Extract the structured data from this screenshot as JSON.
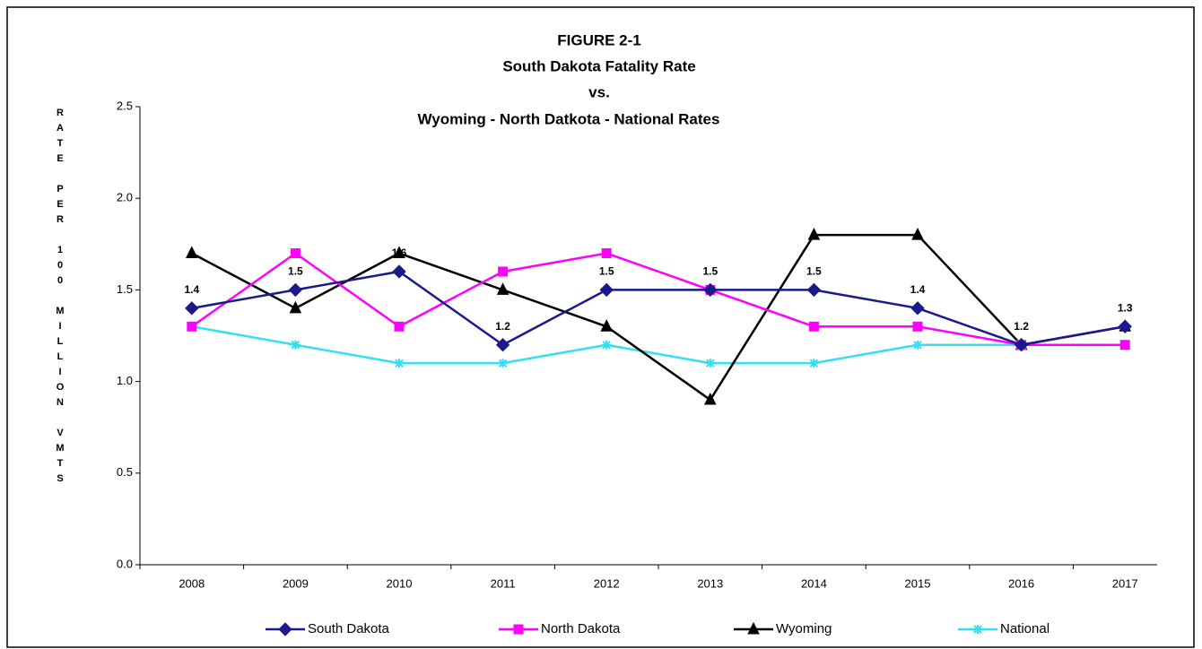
{
  "chart_data": {
    "type": "line",
    "title": "FIGURE 2-1",
    "subtitle": [
      "South Dakota Fatality Rate",
      "vs.",
      "Wyoming - North Datkota - National Rates"
    ],
    "y_label": "RATE PER 100 MILLION VMTS",
    "categories": [
      "2008",
      "2009",
      "2010",
      "2011",
      "2012",
      "2013",
      "2014",
      "2015",
      "2016",
      "2017"
    ],
    "series": [
      {
        "name": "South Dakota",
        "color": "#1a1a8c",
        "marker": "diamond",
        "data_labels": true,
        "values": [
          1.4,
          1.5,
          1.6,
          1.2,
          1.5,
          1.5,
          1.5,
          1.4,
          1.2,
          1.3
        ]
      },
      {
        "name": "North Dakota",
        "color": "#ff00ff",
        "marker": "square",
        "values": [
          1.3,
          1.7,
          1.3,
          1.6,
          1.7,
          1.5,
          1.3,
          1.3,
          1.2,
          1.2
        ]
      },
      {
        "name": "Wyoming",
        "color": "#000000",
        "marker": "triangle",
        "values": [
          1.7,
          1.4,
          1.7,
          1.5,
          1.3,
          0.9,
          1.8,
          1.8,
          1.2,
          1.3
        ]
      },
      {
        "name": "National",
        "color": "#33e0f0",
        "marker": "star",
        "values": [
          1.3,
          1.2,
          1.1,
          1.1,
          1.2,
          1.1,
          1.1,
          1.2,
          1.2,
          1.2
        ]
      }
    ],
    "ylim": [
      0,
      2.5
    ],
    "yticks": [
      {
        "value": 0,
        "label": "0.0"
      },
      0.5,
      {
        "value": 1,
        "label": "1.0"
      },
      1.5,
      {
        "value": 2,
        "label": "2.0"
      },
      2.5
    ],
    "legend": "bottom"
  }
}
